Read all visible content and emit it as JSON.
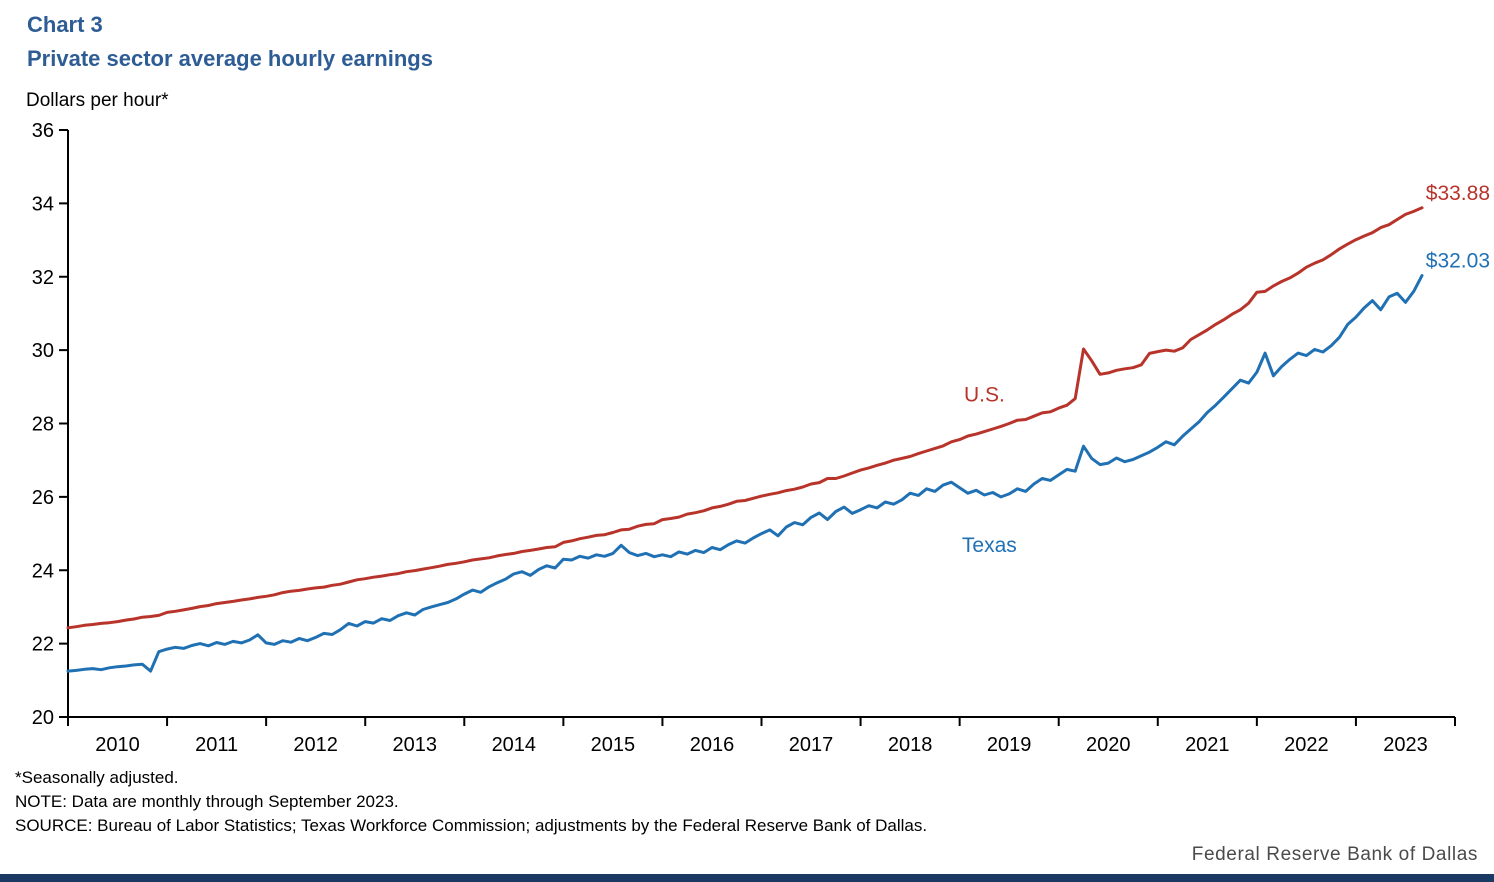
{
  "page": {
    "title_line1": "Chart 3",
    "title_line2": "Private sector average hourly earnings",
    "unit_label": "Dollars per hour*",
    "footnotes": [
      "*Seasonally adjusted.",
      "NOTE: Data are monthly through September 2023.",
      "SOURCE: Bureau of Labor Statistics; Texas Workforce Commission; adjustments by the Federal Reserve Bank of Dallas."
    ],
    "branding": "Federal Reserve Bank of Dallas"
  },
  "colors": {
    "title_blue": "#2E5C94",
    "us_red": "#B8342B",
    "texas_blue": "#2070B4",
    "axis_black": "#000000",
    "bottom_bar_navy": "#1A3A63",
    "branding_gray": "#4B4B4B"
  },
  "chart_data": {
    "type": "line",
    "title": "Private sector average hourly earnings",
    "ylabel": "Dollars per hour*",
    "grid": false,
    "legend_position": "inline-labels",
    "x_domain": [
      2010,
      2024
    ],
    "ylim": [
      20,
      36
    ],
    "y_ticks": [
      20,
      22,
      24,
      26,
      28,
      30,
      32,
      34,
      36
    ],
    "x_tick_years": [
      2010,
      2011,
      2012,
      2013,
      2014,
      2015,
      2016,
      2017,
      2018,
      2019,
      2020,
      2021,
      2022,
      2023
    ],
    "x_start": {
      "year": 2010,
      "month": 1
    },
    "x_end": {
      "year": 2023,
      "month": 9
    },
    "frequency": "monthly",
    "series": [
      {
        "name": "U.S.",
        "color": "#B8342B",
        "end_label": "$33.88",
        "label_pos": {
          "t": 2019.25,
          "v": 28.6
        },
        "values": [
          22.43,
          22.46,
          22.5,
          22.52,
          22.55,
          22.57,
          22.6,
          22.64,
          22.67,
          22.72,
          22.74,
          22.77,
          22.85,
          22.88,
          22.92,
          22.96,
          23.01,
          23.04,
          23.09,
          23.12,
          23.15,
          23.19,
          23.22,
          23.26,
          23.29,
          23.33,
          23.39,
          23.43,
          23.45,
          23.49,
          23.52,
          23.54,
          23.59,
          23.62,
          23.68,
          23.74,
          23.77,
          23.81,
          23.84,
          23.88,
          23.91,
          23.96,
          23.99,
          24.03,
          24.07,
          24.11,
          24.16,
          24.19,
          24.23,
          24.28,
          24.31,
          24.34,
          24.39,
          24.43,
          24.46,
          24.51,
          24.54,
          24.58,
          24.62,
          24.64,
          24.76,
          24.8,
          24.86,
          24.9,
          24.95,
          24.97,
          25.03,
          25.1,
          25.12,
          25.2,
          25.25,
          25.27,
          25.38,
          25.41,
          25.45,
          25.53,
          25.57,
          25.62,
          25.7,
          25.74,
          25.8,
          25.88,
          25.9,
          25.96,
          26.02,
          26.07,
          26.11,
          26.17,
          26.21,
          26.27,
          26.35,
          26.39,
          26.5,
          26.5,
          26.57,
          26.65,
          26.73,
          26.79,
          26.86,
          26.92,
          27.0,
          27.05,
          27.1,
          27.18,
          27.25,
          27.32,
          27.39,
          27.5,
          27.56,
          27.66,
          27.71,
          27.78,
          27.85,
          27.92,
          28.0,
          28.09,
          28.11,
          28.2,
          28.29,
          28.32,
          28.42,
          28.5,
          28.68,
          30.03,
          29.71,
          29.34,
          29.38,
          29.45,
          29.49,
          29.52,
          29.6,
          29.91,
          29.96,
          30.0,
          29.97,
          30.06,
          30.29,
          30.42,
          30.55,
          30.7,
          30.83,
          30.98,
          31.1,
          31.28,
          31.58,
          31.6,
          31.75,
          31.87,
          31.97,
          32.1,
          32.26,
          32.37,
          32.46,
          32.6,
          32.76,
          32.89,
          33.01,
          33.11,
          33.2,
          33.34,
          33.42,
          33.56,
          33.7,
          33.78,
          33.88
        ]
      },
      {
        "name": "Texas",
        "color": "#2070B4",
        "end_label": "$32.03",
        "label_pos": {
          "t": 2019.3,
          "v": 24.5
        },
        "values": [
          21.25,
          21.27,
          21.3,
          21.32,
          21.29,
          21.34,
          21.37,
          21.39,
          21.42,
          21.44,
          21.25,
          21.78,
          21.85,
          21.9,
          21.87,
          21.95,
          22.0,
          21.94,
          22.03,
          21.98,
          22.06,
          22.02,
          22.1,
          22.24,
          22.02,
          21.98,
          22.08,
          22.04,
          22.14,
          22.08,
          22.17,
          22.28,
          22.25,
          22.38,
          22.55,
          22.48,
          22.6,
          22.56,
          22.68,
          22.63,
          22.76,
          22.84,
          22.78,
          22.93,
          23.0,
          23.06,
          23.12,
          23.22,
          23.35,
          23.46,
          23.4,
          23.55,
          23.66,
          23.76,
          23.9,
          23.96,
          23.86,
          24.02,
          24.12,
          24.06,
          24.3,
          24.28,
          24.38,
          24.33,
          24.42,
          24.38,
          24.46,
          24.68,
          24.48,
          24.4,
          24.46,
          24.37,
          24.42,
          24.37,
          24.5,
          24.44,
          24.54,
          24.48,
          24.62,
          24.56,
          24.7,
          24.8,
          24.74,
          24.88,
          25.0,
          25.1,
          24.94,
          25.18,
          25.3,
          25.24,
          25.44,
          25.56,
          25.38,
          25.6,
          25.72,
          25.55,
          25.65,
          25.76,
          25.7,
          25.86,
          25.8,
          25.92,
          26.1,
          26.04,
          26.22,
          26.15,
          26.32,
          26.4,
          26.25,
          26.1,
          26.18,
          26.05,
          26.12,
          26.0,
          26.08,
          26.22,
          26.15,
          26.35,
          26.5,
          26.45,
          26.6,
          26.75,
          26.7,
          27.38,
          27.05,
          26.88,
          26.92,
          27.06,
          26.96,
          27.02,
          27.12,
          27.22,
          27.35,
          27.5,
          27.42,
          27.65,
          27.85,
          28.05,
          28.3,
          28.5,
          28.72,
          28.95,
          29.18,
          29.1,
          29.4,
          29.92,
          29.3,
          29.55,
          29.75,
          29.92,
          29.85,
          30.02,
          29.95,
          30.12,
          30.35,
          30.7,
          30.9,
          31.15,
          31.35,
          31.1,
          31.45,
          31.55,
          31.3,
          31.6,
          32.03
        ]
      }
    ]
  }
}
